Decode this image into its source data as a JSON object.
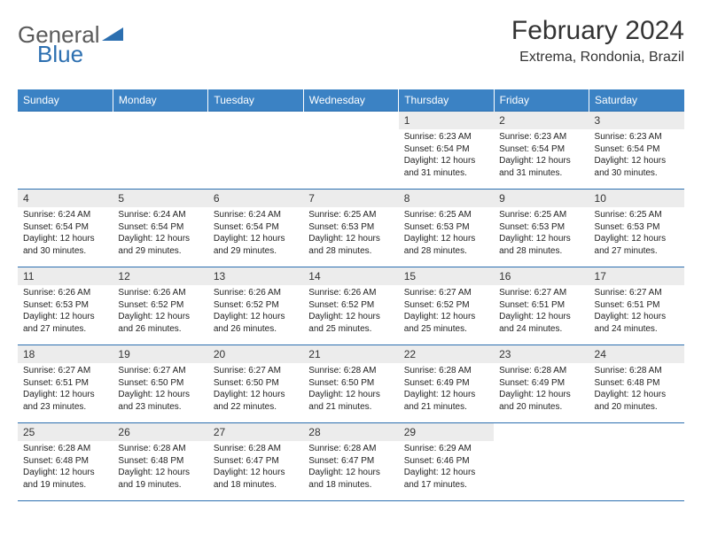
{
  "logo": {
    "text1": "General",
    "text2": "Blue"
  },
  "title": "February 2024",
  "location": "Extrema, Rondonia, Brazil",
  "headers": [
    "Sunday",
    "Monday",
    "Tuesday",
    "Wednesday",
    "Thursday",
    "Friday",
    "Saturday"
  ],
  "colors": {
    "header_bg": "#3b82c4",
    "header_text": "#ffffff",
    "daynum_bg": "#ececec",
    "border": "#2c6fb0",
    "logo_gray": "#5a5a5a",
    "logo_blue": "#2c6fb0"
  },
  "weeks": [
    [
      {
        "n": "",
        "sunrise": "",
        "sunset": "",
        "daylight": ""
      },
      {
        "n": "",
        "sunrise": "",
        "sunset": "",
        "daylight": ""
      },
      {
        "n": "",
        "sunrise": "",
        "sunset": "",
        "daylight": ""
      },
      {
        "n": "",
        "sunrise": "",
        "sunset": "",
        "daylight": ""
      },
      {
        "n": "1",
        "sunrise": "Sunrise: 6:23 AM",
        "sunset": "Sunset: 6:54 PM",
        "daylight": "Daylight: 12 hours and 31 minutes."
      },
      {
        "n": "2",
        "sunrise": "Sunrise: 6:23 AM",
        "sunset": "Sunset: 6:54 PM",
        "daylight": "Daylight: 12 hours and 31 minutes."
      },
      {
        "n": "3",
        "sunrise": "Sunrise: 6:23 AM",
        "sunset": "Sunset: 6:54 PM",
        "daylight": "Daylight: 12 hours and 30 minutes."
      }
    ],
    [
      {
        "n": "4",
        "sunrise": "Sunrise: 6:24 AM",
        "sunset": "Sunset: 6:54 PM",
        "daylight": "Daylight: 12 hours and 30 minutes."
      },
      {
        "n": "5",
        "sunrise": "Sunrise: 6:24 AM",
        "sunset": "Sunset: 6:54 PM",
        "daylight": "Daylight: 12 hours and 29 minutes."
      },
      {
        "n": "6",
        "sunrise": "Sunrise: 6:24 AM",
        "sunset": "Sunset: 6:54 PM",
        "daylight": "Daylight: 12 hours and 29 minutes."
      },
      {
        "n": "7",
        "sunrise": "Sunrise: 6:25 AM",
        "sunset": "Sunset: 6:53 PM",
        "daylight": "Daylight: 12 hours and 28 minutes."
      },
      {
        "n": "8",
        "sunrise": "Sunrise: 6:25 AM",
        "sunset": "Sunset: 6:53 PM",
        "daylight": "Daylight: 12 hours and 28 minutes."
      },
      {
        "n": "9",
        "sunrise": "Sunrise: 6:25 AM",
        "sunset": "Sunset: 6:53 PM",
        "daylight": "Daylight: 12 hours and 28 minutes."
      },
      {
        "n": "10",
        "sunrise": "Sunrise: 6:25 AM",
        "sunset": "Sunset: 6:53 PM",
        "daylight": "Daylight: 12 hours and 27 minutes."
      }
    ],
    [
      {
        "n": "11",
        "sunrise": "Sunrise: 6:26 AM",
        "sunset": "Sunset: 6:53 PM",
        "daylight": "Daylight: 12 hours and 27 minutes."
      },
      {
        "n": "12",
        "sunrise": "Sunrise: 6:26 AM",
        "sunset": "Sunset: 6:52 PM",
        "daylight": "Daylight: 12 hours and 26 minutes."
      },
      {
        "n": "13",
        "sunrise": "Sunrise: 6:26 AM",
        "sunset": "Sunset: 6:52 PM",
        "daylight": "Daylight: 12 hours and 26 minutes."
      },
      {
        "n": "14",
        "sunrise": "Sunrise: 6:26 AM",
        "sunset": "Sunset: 6:52 PM",
        "daylight": "Daylight: 12 hours and 25 minutes."
      },
      {
        "n": "15",
        "sunrise": "Sunrise: 6:27 AM",
        "sunset": "Sunset: 6:52 PM",
        "daylight": "Daylight: 12 hours and 25 minutes."
      },
      {
        "n": "16",
        "sunrise": "Sunrise: 6:27 AM",
        "sunset": "Sunset: 6:51 PM",
        "daylight": "Daylight: 12 hours and 24 minutes."
      },
      {
        "n": "17",
        "sunrise": "Sunrise: 6:27 AM",
        "sunset": "Sunset: 6:51 PM",
        "daylight": "Daylight: 12 hours and 24 minutes."
      }
    ],
    [
      {
        "n": "18",
        "sunrise": "Sunrise: 6:27 AM",
        "sunset": "Sunset: 6:51 PM",
        "daylight": "Daylight: 12 hours and 23 minutes."
      },
      {
        "n": "19",
        "sunrise": "Sunrise: 6:27 AM",
        "sunset": "Sunset: 6:50 PM",
        "daylight": "Daylight: 12 hours and 23 minutes."
      },
      {
        "n": "20",
        "sunrise": "Sunrise: 6:27 AM",
        "sunset": "Sunset: 6:50 PM",
        "daylight": "Daylight: 12 hours and 22 minutes."
      },
      {
        "n": "21",
        "sunrise": "Sunrise: 6:28 AM",
        "sunset": "Sunset: 6:50 PM",
        "daylight": "Daylight: 12 hours and 21 minutes."
      },
      {
        "n": "22",
        "sunrise": "Sunrise: 6:28 AM",
        "sunset": "Sunset: 6:49 PM",
        "daylight": "Daylight: 12 hours and 21 minutes."
      },
      {
        "n": "23",
        "sunrise": "Sunrise: 6:28 AM",
        "sunset": "Sunset: 6:49 PM",
        "daylight": "Daylight: 12 hours and 20 minutes."
      },
      {
        "n": "24",
        "sunrise": "Sunrise: 6:28 AM",
        "sunset": "Sunset: 6:48 PM",
        "daylight": "Daylight: 12 hours and 20 minutes."
      }
    ],
    [
      {
        "n": "25",
        "sunrise": "Sunrise: 6:28 AM",
        "sunset": "Sunset: 6:48 PM",
        "daylight": "Daylight: 12 hours and 19 minutes."
      },
      {
        "n": "26",
        "sunrise": "Sunrise: 6:28 AM",
        "sunset": "Sunset: 6:48 PM",
        "daylight": "Daylight: 12 hours and 19 minutes."
      },
      {
        "n": "27",
        "sunrise": "Sunrise: 6:28 AM",
        "sunset": "Sunset: 6:47 PM",
        "daylight": "Daylight: 12 hours and 18 minutes."
      },
      {
        "n": "28",
        "sunrise": "Sunrise: 6:28 AM",
        "sunset": "Sunset: 6:47 PM",
        "daylight": "Daylight: 12 hours and 18 minutes."
      },
      {
        "n": "29",
        "sunrise": "Sunrise: 6:29 AM",
        "sunset": "Sunset: 6:46 PM",
        "daylight": "Daylight: 12 hours and 17 minutes."
      },
      {
        "n": "",
        "sunrise": "",
        "sunset": "",
        "daylight": ""
      },
      {
        "n": "",
        "sunrise": "",
        "sunset": "",
        "daylight": ""
      }
    ]
  ]
}
